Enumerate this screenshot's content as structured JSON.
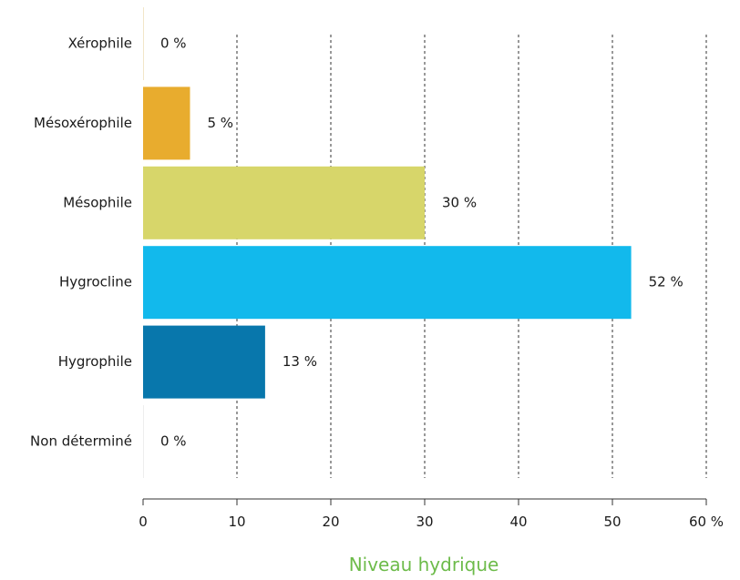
{
  "chart_data": {
    "type": "bar",
    "orientation": "horizontal",
    "categories": [
      "Xérophile",
      "Mésoxérophile",
      "Mésophile",
      "Hygrocline",
      "Hygrophile",
      "Non déterminé"
    ],
    "values": [
      0,
      5,
      30,
      52,
      13,
      0
    ],
    "value_labels": [
      "0 %",
      "5 %",
      "30 %",
      "52 %",
      "13 %",
      "0 %"
    ],
    "bar_colors": [
      "#f2e6c8",
      "#e8ac2e",
      "#d7d66a",
      "#12b9ec",
      "#0877ac",
      "#eeeeee"
    ],
    "xlim": [
      0,
      60
    ],
    "x_ticks": [
      0,
      10,
      20,
      30,
      40,
      50,
      60
    ],
    "x_tick_labels": [
      "0",
      "10",
      "20",
      "30",
      "40",
      "50",
      "60 %"
    ],
    "xlabel": "Niveau hydrique",
    "xlabel_color": "#6dbb4a",
    "grid": "vertical dashed"
  }
}
